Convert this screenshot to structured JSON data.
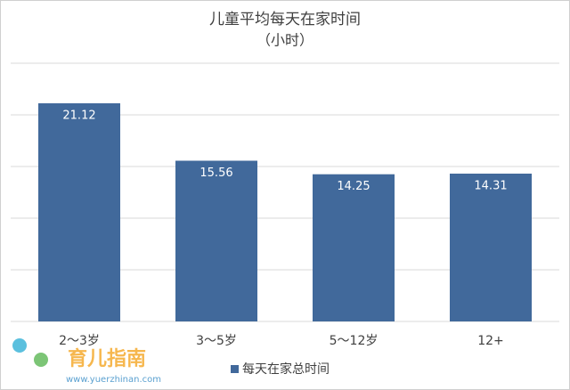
{
  "chart_data": {
    "type": "bar",
    "title": "儿童平均每天在家时间",
    "subtitle": "（小时）",
    "categories": [
      "2～3岁",
      "3～5岁",
      "5～12岁",
      "12+"
    ],
    "series": [
      {
        "name": "每天在家总时间",
        "color": "#41699b",
        "values": [
          21.12,
          15.56,
          14.25,
          14.31
        ]
      }
    ],
    "ylim": [
      0,
      25
    ],
    "yticks": [
      0,
      5,
      10,
      15,
      20,
      25
    ],
    "grid": true,
    "legend": "bottom"
  },
  "watermark": {
    "brand": "育儿指南",
    "url": "www.yuerzhinan.com"
  }
}
